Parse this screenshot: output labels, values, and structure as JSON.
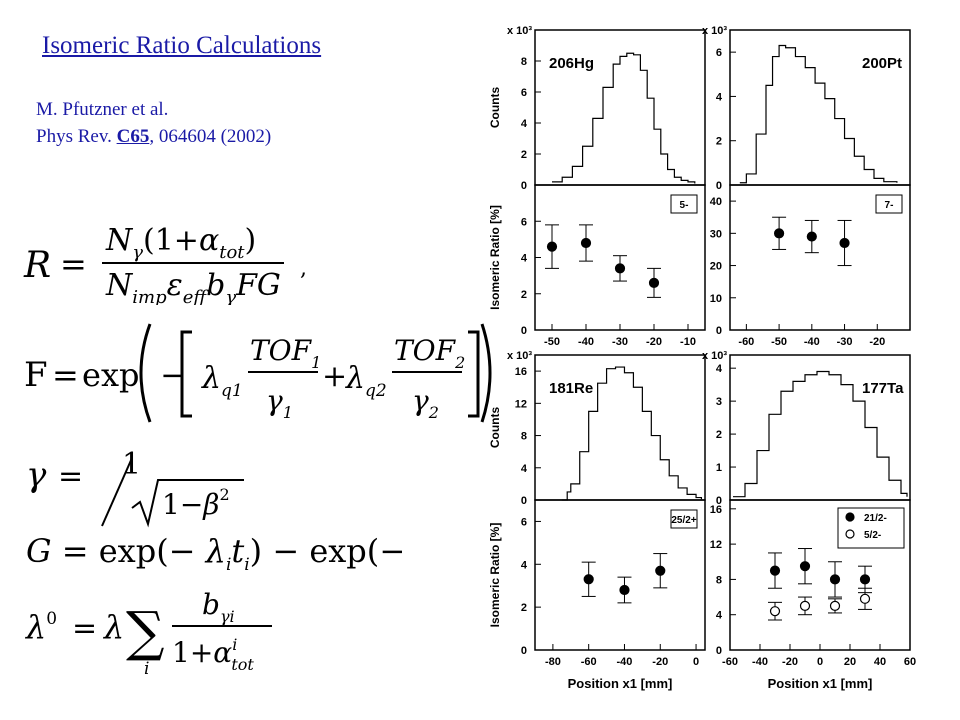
{
  "slide": {
    "title": "Isomeric Ratio Calculations",
    "citation_line1": "M. Pfutzner et al.",
    "citation_prefix": "Phys Rev. ",
    "citation_journal": "C65",
    "citation_suffix": ", 064604 (2002)"
  },
  "equations": {
    "R": {
      "lhs": "R",
      "eq": "=",
      "num": "Nγ(1+αtot)",
      "den": "NimpεeffbγFG",
      "tail": ","
    },
    "F": {
      "lhs": "F",
      "eq": "=",
      "exp": "exp",
      "l1": "λq1",
      "tof1": "TOF1",
      "g1": "γ1",
      "l2": "λq2",
      "tof2": "TOF2",
      "g2": "γ2"
    },
    "gamma": {
      "lhs": "γ",
      "eq": "=",
      "num": "1",
      "rad": "1−β2"
    },
    "G": {
      "text": "G = exp(−λiti) − exp(−λtf)"
    },
    "lambda0": {
      "lhs": "λ0",
      "eq": "=",
      "lam": "λ",
      "sum": "∑",
      "idx": "i",
      "num": "bγi",
      "den": "1+αitot"
    }
  },
  "chart_data": [
    {
      "type": "line",
      "panel": "206Hg",
      "label": "206Hg",
      "ylabel": "Counts",
      "yunit": "x 10³",
      "ylim": [
        0,
        10
      ],
      "xlim": [
        -55,
        -5
      ],
      "yticks": [
        0,
        2,
        4,
        6,
        8
      ],
      "x": [
        -50,
        -47,
        -44,
        -41,
        -38,
        -35,
        -32,
        -30,
        -28,
        -26,
        -24,
        -22,
        -20,
        -18,
        -16,
        -14,
        -12,
        -10,
        -8
      ],
      "y": [
        0.2,
        0.5,
        1.2,
        2.5,
        4.3,
        6.3,
        7.8,
        8.3,
        8.5,
        8.4,
        7.4,
        5.6,
        3.6,
        2.0,
        1.0,
        0.5,
        0.3,
        0.2,
        0.1
      ]
    },
    {
      "type": "line",
      "panel": "200Pt",
      "label": "200Pt",
      "ylabel": "",
      "yunit": "x 10³",
      "ylim": [
        0,
        7
      ],
      "xlim": [
        -65,
        -10
      ],
      "yticks": [
        0,
        2,
        4,
        6
      ],
      "x": [
        -62,
        -60,
        -57,
        -54,
        -52,
        -50,
        -48,
        -45,
        -42,
        -39,
        -36,
        -33,
        -30,
        -27,
        -24,
        -21,
        -18,
        -14
      ],
      "y": [
        0.1,
        0.5,
        2.3,
        4.5,
        5.8,
        6.3,
        6.2,
        5.8,
        5.3,
        4.6,
        3.9,
        3.0,
        2.1,
        1.3,
        0.7,
        0.3,
        0.15,
        0.1
      ]
    },
    {
      "type": "scatter",
      "panel": "206Hg",
      "label": "5-",
      "ylabel": "Isomeric Ratio [%]",
      "ylim": [
        0,
        8
      ],
      "xlim": [
        -55,
        -5
      ],
      "yticks": [
        0,
        2,
        4,
        6
      ],
      "xticks": [
        -50,
        -40,
        -30,
        -20,
        -10
      ],
      "series": [
        {
          "x": [
            -50,
            -40,
            -30,
            -20
          ],
          "y": [
            4.6,
            4.8,
            3.4,
            2.6
          ],
          "err": [
            1.2,
            1.0,
            0.7,
            0.8
          ]
        }
      ]
    },
    {
      "type": "scatter",
      "panel": "200Pt",
      "label": "7-",
      "ylabel": "",
      "ylim": [
        0,
        45
      ],
      "xlim": [
        -65,
        -10
      ],
      "yticks": [
        0,
        10,
        20,
        30,
        40
      ],
      "xticks": [
        -60,
        -50,
        -40,
        -30,
        -20
      ],
      "series": [
        {
          "x": [
            -50,
            -40,
            -30
          ],
          "y": [
            30,
            29,
            27
          ],
          "err": [
            5,
            5,
            7
          ]
        }
      ]
    },
    {
      "type": "line",
      "panel": "181Re",
      "label": "181Re",
      "ylabel": "Counts",
      "yunit": "x 10³",
      "ylim": [
        0,
        18
      ],
      "xlim": [
        -90,
        5
      ],
      "yticks": [
        0,
        4,
        8,
        12,
        16
      ],
      "x": [
        -75,
        -72,
        -70,
        -65,
        -60,
        -55,
        -50,
        -45,
        -40,
        -35,
        -30,
        -25,
        -20,
        -15,
        -10,
        -5,
        0,
        3
      ],
      "y": [
        0,
        1,
        2,
        6,
        11,
        14.5,
        16.3,
        16.5,
        15.8,
        14,
        11,
        8,
        5,
        3,
        1.5,
        0.7,
        0.3,
        0.1
      ]
    },
    {
      "type": "line",
      "panel": "177Ta",
      "label": "177Ta",
      "ylabel": "",
      "yunit": "x 10³",
      "ylim": [
        0,
        4.4
      ],
      "xlim": [
        -60,
        60
      ],
      "yticks": [
        0,
        1,
        2,
        3,
        4
      ],
      "x": [
        -58,
        -50,
        -42,
        -34,
        -26,
        -18,
        -10,
        -2,
        6,
        14,
        22,
        30,
        38,
        46,
        54,
        58
      ],
      "y": [
        0.1,
        0.5,
        1.5,
        2.6,
        3.3,
        3.6,
        3.8,
        3.9,
        3.8,
        3.5,
        3.0,
        2.2,
        1.3,
        0.6,
        0.2,
        0.1
      ]
    },
    {
      "type": "scatter",
      "panel": "181Re",
      "label": "25/2+",
      "ylabel": "Isomeric Ratio [%]",
      "xlabel": "Position x1 [mm]",
      "ylim": [
        0,
        7
      ],
      "xlim": [
        -90,
        5
      ],
      "yticks": [
        0,
        2,
        4,
        6
      ],
      "xticks": [
        -80,
        -60,
        -40,
        -20,
        0
      ],
      "series": [
        {
          "x": [
            -60,
            -40,
            -20
          ],
          "y": [
            3.3,
            2.8,
            3.7
          ],
          "err": [
            0.8,
            0.6,
            0.8
          ]
        }
      ]
    },
    {
      "type": "scatter",
      "panel": "177Ta",
      "label": "",
      "ylabel": "",
      "xlabel": "Position x1 [mm]",
      "ylim": [
        0,
        17
      ],
      "xlim": [
        -60,
        60
      ],
      "yticks": [
        0,
        4,
        8,
        12,
        16
      ],
      "xticks": [
        -60,
        -40,
        -20,
        0,
        20,
        40,
        60
      ],
      "series": [
        {
          "name": "21/2-",
          "marker": "filled",
          "x": [
            -30,
            -10,
            10,
            30
          ],
          "y": [
            9,
            9.5,
            8,
            8
          ],
          "err": [
            2,
            2,
            2,
            1.5
          ]
        },
        {
          "name": "5/2-",
          "marker": "open",
          "x": [
            -30,
            -10,
            10,
            30
          ],
          "y": [
            4.4,
            5,
            5,
            5.8
          ],
          "err": [
            1,
            1,
            0.8,
            1.2
          ]
        }
      ]
    }
  ]
}
